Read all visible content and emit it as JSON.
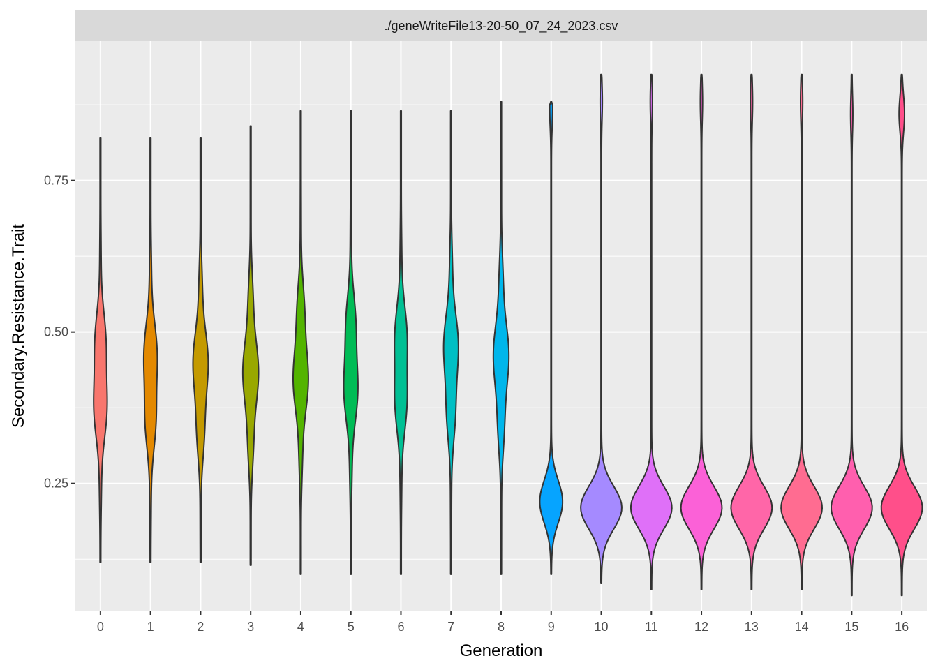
{
  "chart_data": {
    "type": "violin",
    "facet_label": "./geneWriteFile13-20-50_07_24_2023.csv",
    "xlabel": "Generation",
    "ylabel": "Secondary.Resistance.Trait",
    "ylim": [
      0.04,
      0.98
    ],
    "y_ticks": [
      0.25,
      0.5,
      0.75
    ],
    "y_tick_labels": [
      "0.25",
      "0.50",
      "0.75"
    ],
    "grid": true,
    "legend": "none",
    "colors": {
      "panel_bg": "#EBEBEB",
      "grid": "#FFFFFF",
      "strip_bg": "#D9D9D9",
      "outline": "#333333"
    },
    "categories": [
      "0",
      "1",
      "2",
      "3",
      "4",
      "5",
      "6",
      "7",
      "8",
      "9",
      "10",
      "11",
      "12",
      "13",
      "14",
      "15",
      "16"
    ],
    "series": [
      {
        "generation": "0",
        "color": "#F8766D",
        "min": 0.12,
        "max": 0.82,
        "mode": 0.42,
        "high_mode": null
      },
      {
        "generation": "1",
        "color": "#E38900",
        "min": 0.12,
        "max": 0.82,
        "mode": 0.42,
        "high_mode": null
      },
      {
        "generation": "2",
        "color": "#C49A00",
        "min": 0.12,
        "max": 0.82,
        "mode": 0.43,
        "high_mode": null
      },
      {
        "generation": "3",
        "color": "#99A800",
        "min": 0.115,
        "max": 0.84,
        "mode": 0.43,
        "high_mode": null
      },
      {
        "generation": "4",
        "color": "#53B400",
        "min": 0.1,
        "max": 0.865,
        "mode": 0.44,
        "high_mode": null
      },
      {
        "generation": "5",
        "color": "#00BC56",
        "min": 0.1,
        "max": 0.865,
        "mode": 0.44,
        "high_mode": null
      },
      {
        "generation": "6",
        "color": "#00C094",
        "min": 0.1,
        "max": 0.865,
        "mode": 0.44,
        "high_mode": null
      },
      {
        "generation": "7",
        "color": "#00BFC4",
        "min": 0.1,
        "max": 0.865,
        "mode": 0.45,
        "high_mode": null
      },
      {
        "generation": "8",
        "color": "#00B6EB",
        "min": 0.1,
        "max": 0.88,
        "mode": 0.45,
        "high_mode": null
      },
      {
        "generation": "9",
        "color": "#06A4FF",
        "min": 0.1,
        "max": 0.88,
        "mode": 0.22,
        "high_mode": 0.87
      },
      {
        "generation": "10",
        "color": "#A58AFF",
        "min": 0.085,
        "max": 0.925,
        "mode": 0.21,
        "high_mode": 0.88
      },
      {
        "generation": "11",
        "color": "#DF70F8",
        "min": 0.075,
        "max": 0.925,
        "mode": 0.21,
        "high_mode": 0.88
      },
      {
        "generation": "12",
        "color": "#FB61D7",
        "min": 0.075,
        "max": 0.925,
        "mode": 0.21,
        "high_mode": 0.88
      },
      {
        "generation": "13",
        "color": "#FF66A8",
        "min": 0.075,
        "max": 0.925,
        "mode": 0.21,
        "high_mode": 0.88
      },
      {
        "generation": "14",
        "color": "#FF6C91",
        "min": 0.075,
        "max": 0.925,
        "mode": 0.21,
        "high_mode": 0.88
      },
      {
        "generation": "15",
        "color": "#FF5FAE",
        "min": 0.065,
        "max": 0.925,
        "mode": 0.21,
        "high_mode": 0.86
      },
      {
        "generation": "16",
        "color": "#FF4F8A",
        "min": 0.065,
        "max": 0.925,
        "mode": 0.21,
        "high_mode": 0.86
      }
    ]
  }
}
